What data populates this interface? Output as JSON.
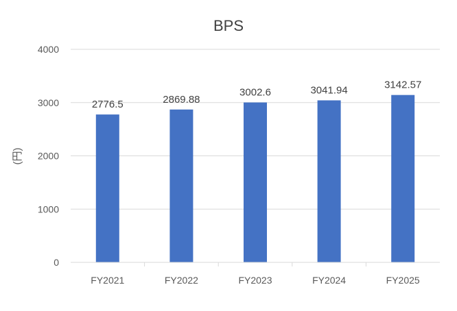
{
  "chart_data": {
    "type": "bar",
    "title": "BPS",
    "ylabel": "(円)",
    "xlabel": "",
    "categories": [
      "FY2021",
      "FY2022",
      "FY2023",
      "FY2024",
      "FY2025"
    ],
    "values": [
      2776.5,
      2869.88,
      3002.6,
      3041.94,
      3142.57
    ],
    "data_labels": [
      "2776.5",
      "2869.88",
      "3002.6",
      "3041.94",
      "3142.57"
    ],
    "ylim": [
      0,
      4000
    ],
    "yticks": [
      0,
      1000,
      2000,
      3000,
      4000
    ],
    "grid": true,
    "legend": "none",
    "bar_color": "#4472C4",
    "grid_color": "#D9D9D9"
  }
}
